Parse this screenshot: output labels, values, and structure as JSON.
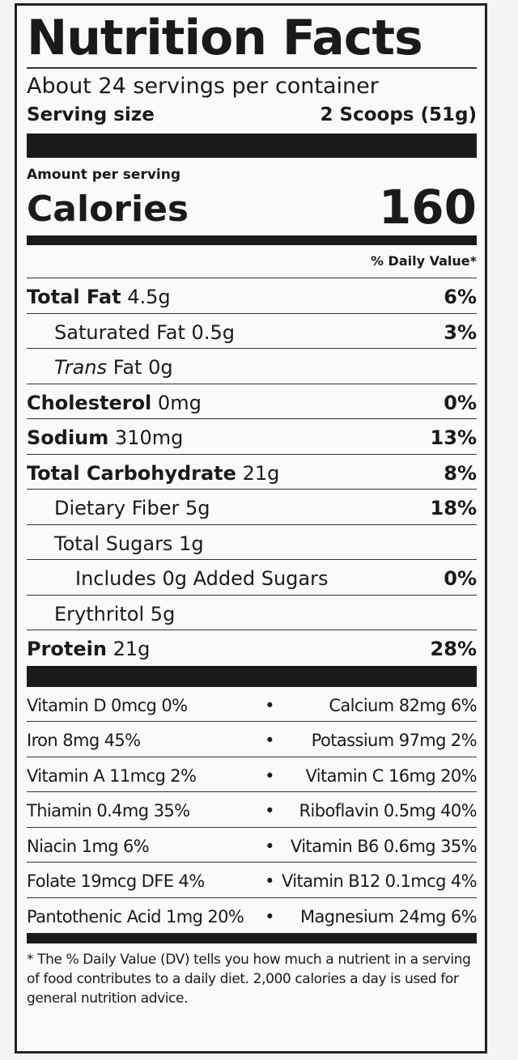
{
  "title": "Nutrition Facts",
  "servings_per_container": "About 24 servings per container",
  "serving_size_label": "Serving size",
  "serving_size_value": "2 Scoops (51g)",
  "amount_per_serving": "Amount per serving",
  "calories_label": "Calories",
  "calories_value": "160",
  "daily_value_header": "% Daily Value*",
  "nutrients": [
    {
      "name": "Total Fat",
      "amount": "4.5g",
      "dv": "6%"
    },
    {
      "name": "Saturated Fat",
      "amount": "0.5g",
      "dv": "3%"
    },
    {
      "name": "Trans",
      "name_rest": "Fat",
      "amount": "0g",
      "dv": ""
    },
    {
      "name": "Cholesterol",
      "amount": "0mg",
      "dv": "0%"
    },
    {
      "name": "Sodium",
      "amount": "310mg",
      "dv": "13%"
    },
    {
      "name": "Total Carbohydrate",
      "amount": "21g",
      "dv": "8%"
    },
    {
      "name": "Dietary Fiber",
      "amount": "5g",
      "dv": "18%"
    },
    {
      "name": "Total Sugars",
      "amount": "1g",
      "dv": ""
    },
    {
      "name": "Includes 0g Added Sugars",
      "amount": "",
      "dv": "0%"
    },
    {
      "name": "Erythritol",
      "amount": "5g",
      "dv": ""
    },
    {
      "name": "Protein",
      "amount": "21g",
      "dv": "28%"
    }
  ],
  "vitamins": [
    {
      "left": "Vitamin D 0mcg 0%",
      "right": "Calcium 82mg 6%"
    },
    {
      "left": "Iron 8mg 45%",
      "right": "Potassium 97mg 2%"
    },
    {
      "left": "Vitamin A 11mcg 2%",
      "right": "Vitamin C 16mg 20%"
    },
    {
      "left": "Thiamin 0.4mg 35%",
      "right": "Riboflavin 0.5mg 40%"
    },
    {
      "left": "Niacin 1mg 6%",
      "right": "Vitamin B6 0.6mg 35%"
    },
    {
      "left": "Folate 19mcg DFE 4%",
      "right": "Vitamin B12 0.1mcg 4%"
    },
    {
      "left": "Pantothenic Acid 1mg 20%",
      "right": "Magnesium 24mg 6%"
    }
  ],
  "separator": "•",
  "footnote": "* The % Daily Value (DV) tells you how much a nutrient in a serving of food contributes to a daily diet. 2,000 calories a day is used for general nutrition advice."
}
